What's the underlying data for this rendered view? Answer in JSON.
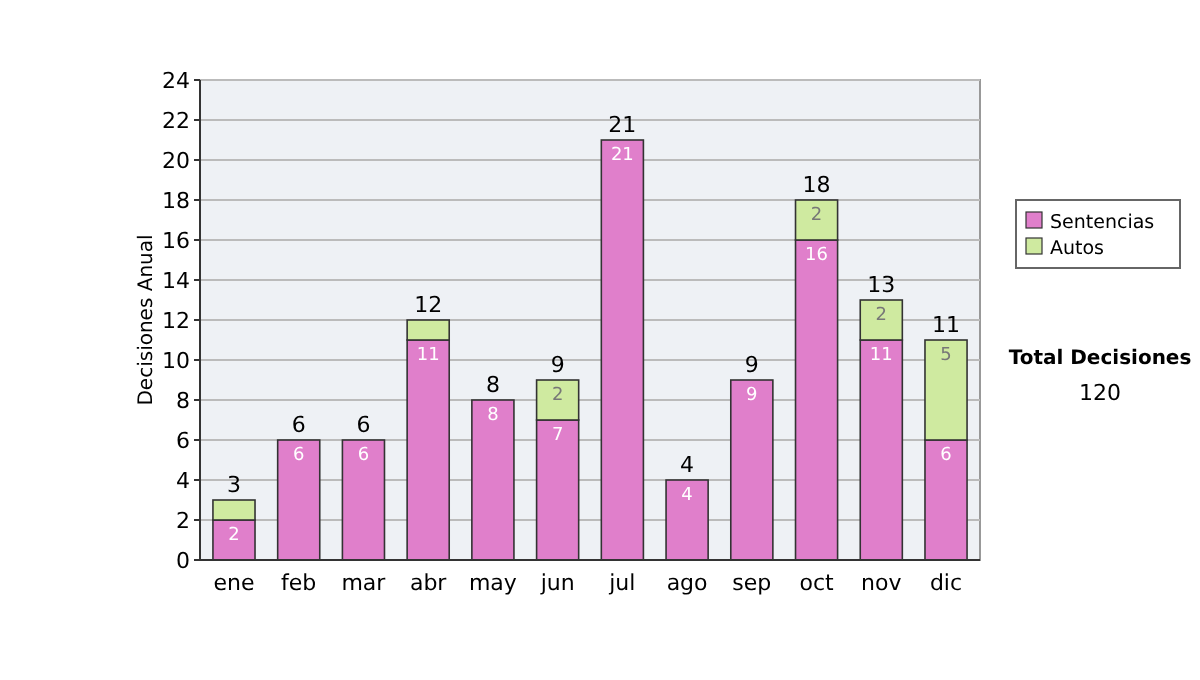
{
  "chart_data": {
    "type": "bar",
    "stacked": true,
    "ylabel": "Decisiones Anual",
    "categories": [
      "ene",
      "feb",
      "mar",
      "abr",
      "may",
      "jun",
      "jul",
      "ago",
      "sep",
      "oct",
      "nov",
      "dic"
    ],
    "series": [
      {
        "name": "Sentencias",
        "color": "#e07fcb",
        "values": [
          2,
          6,
          6,
          11,
          8,
          7,
          21,
          4,
          9,
          16,
          11,
          6
        ],
        "value_labels": [
          "2",
          "6",
          "6",
          "11",
          "8",
          "7",
          "21",
          "4",
          "9",
          "16",
          "11",
          "6"
        ]
      },
      {
        "name": "Autos",
        "color": "#cfeaa0",
        "values": [
          1,
          0,
          0,
          1,
          0,
          2,
          0,
          0,
          0,
          2,
          2,
          5
        ],
        "value_labels": [
          null,
          null,
          null,
          null,
          null,
          "2",
          null,
          null,
          null,
          "2",
          "2",
          "5"
        ]
      }
    ],
    "totals": [
      "3",
      "6",
      "6",
      "12",
      "8",
      "9",
      "21",
      "4",
      "9",
      "18",
      "13",
      "11"
    ],
    "ylim": [
      0,
      24
    ],
    "yticks": [
      0,
      2,
      4,
      6,
      8,
      10,
      12,
      14,
      16,
      18,
      20,
      22,
      24
    ],
    "grid": "y",
    "legend": "right",
    "annotations": [
      "Total Decisiones",
      "120"
    ]
  }
}
